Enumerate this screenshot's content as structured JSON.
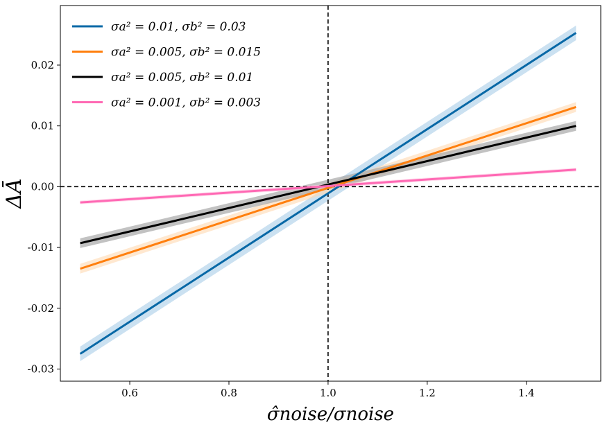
{
  "chart_data": {
    "type": "line",
    "title": "",
    "xlabel": "σ̂noise/σnoise",
    "ylabel": "ΔĀ",
    "xlim": [
      0.46,
      1.55
    ],
    "ylim": [
      -0.032,
      0.0298
    ],
    "x_ticks": [
      0.6,
      0.8,
      1.0,
      1.2,
      1.4
    ],
    "x_tick_labels": [
      "0.6",
      "0.8",
      "1.0",
      "1.2",
      "1.4"
    ],
    "y_ticks": [
      -0.03,
      -0.02,
      -0.01,
      0.0,
      0.01,
      0.02
    ],
    "y_tick_labels": [
      "-0.03",
      "-0.02",
      "-0.01",
      "0.00",
      "0.01",
      "0.02"
    ],
    "reference_lines": {
      "vertical_x": 1.0,
      "horizontal_y": 0.0,
      "style": "dashed"
    },
    "legend_position": "top-left",
    "grid": false,
    "series": [
      {
        "name": "σa² = 0.01, σb² = 0.03",
        "color": "#0868a6",
        "band_color": "#a9cde8",
        "x": [
          0.5,
          1.5
        ],
        "values": [
          -0.0275,
          0.0253
        ],
        "band": 0.0012
      },
      {
        "name": "σa² = 0.005, σb² = 0.015",
        "color": "#ff7f0e",
        "band_color": "#ffd9b0",
        "x": [
          0.5,
          1.5
        ],
        "values": [
          -0.0135,
          0.0131
        ],
        "band": 0.0008
      },
      {
        "name": "σa² = 0.005, σb² = 0.01",
        "color": "#000000",
        "band_color": "#a8a8a8",
        "x": [
          0.5,
          1.5
        ],
        "values": [
          -0.0093,
          0.01
        ],
        "band": 0.0008
      },
      {
        "name": "σa² = 0.001, σb² = 0.003",
        "color": "#ff69b4",
        "band_color": "#ffc8e3",
        "x": [
          0.5,
          1.5
        ],
        "values": [
          -0.0026,
          0.0028
        ],
        "band": 0.0003
      }
    ]
  }
}
